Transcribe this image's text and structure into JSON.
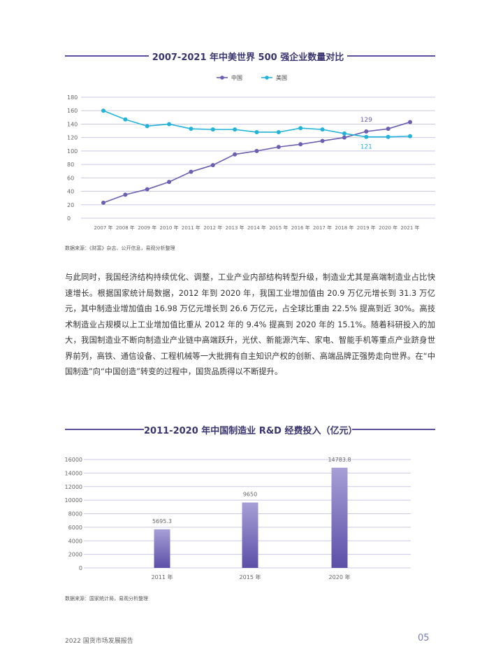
{
  "chart_data": [
    {
      "type": "line",
      "title": "2007-2021 年中美世界 500 强企业数量对比",
      "categories": [
        "2007 年",
        "2008 年",
        "2009 年",
        "2010 年",
        "2011 年",
        "2012 年",
        "2013 年",
        "2014 年",
        "2015 年",
        "2016 年",
        "2017 年",
        "2018 年",
        "2019 年",
        "2020 年",
        "2021 年"
      ],
      "series": [
        {
          "name": "中国",
          "color": "#6a5fb0",
          "values": [
            23,
            35,
            43,
            54,
            69,
            79,
            95,
            100,
            106,
            110,
            115,
            120,
            129,
            133,
            143
          ]
        },
        {
          "name": "美国",
          "color": "#22b3d8",
          "values": [
            160,
            147,
            137,
            140,
            133,
            132,
            132,
            128,
            128,
            134,
            132,
            126,
            121,
            121,
            122
          ]
        }
      ],
      "yticks": [
        "180",
        "160",
        "140",
        "120",
        "100",
        "80",
        "60",
        "40",
        "20",
        "0"
      ],
      "ylim": [
        0,
        180
      ],
      "legend_position": "top",
      "annotations": [
        {
          "series": "中国",
          "index": 12,
          "text": "129"
        },
        {
          "series": "美国",
          "index": 12,
          "text": "121"
        }
      ],
      "source": "数据来源：《财富》杂志、公开信息，易观分析整理"
    },
    {
      "type": "bar",
      "title": "2011-2020 年中国制造业 R&D 经费投入（亿元）",
      "categories": [
        "2011 年",
        "2015 年",
        "2020 年"
      ],
      "values": [
        5695.3,
        9650,
        14783.8
      ],
      "labels": [
        "5695.3",
        "9650",
        "14783.8"
      ],
      "yticks": [
        "16000",
        "14000",
        "12000",
        "10000",
        "8000",
        "6000",
        "4000",
        "2000",
        "0"
      ],
      "ylim": [
        0,
        16000
      ],
      "source": "数据来源：国家统计局，易观分析整理"
    }
  ],
  "paragraph": "与此同时，我国经济结构持续优化、调整，工业产业内部结构转型升级，制造业尤其是高端制造业占比快速增长。根据国家统计局数据，2012 年到 2020 年，我国工业增加值由 20.9 万亿元增长到 31.3 万亿元，其中制造业增加值由 16.98 万亿元增长到 26.6 万亿元，占全球比重由 22.5% 提高到近 30%。高技术制造业占规模以上工业增加值比重从 2012 年的 9.4% 提高到 2020 年的 15.1%。随着科研投入的加大，我国制造业不断向制造业产业链中高端跃升，光伏、新能源汽车、家电、智能手机等重点产业跻身世界前列，高铁、通信设备、工程机械等一大批拥有自主知识产权的创新、高端品牌正强势走向世界。在“中国制造”向“中国创造”转变的过程中，国货品质得以不断提升。",
  "footer": {
    "report_title": "2022 国货市场发展报告",
    "page_number": "05"
  }
}
